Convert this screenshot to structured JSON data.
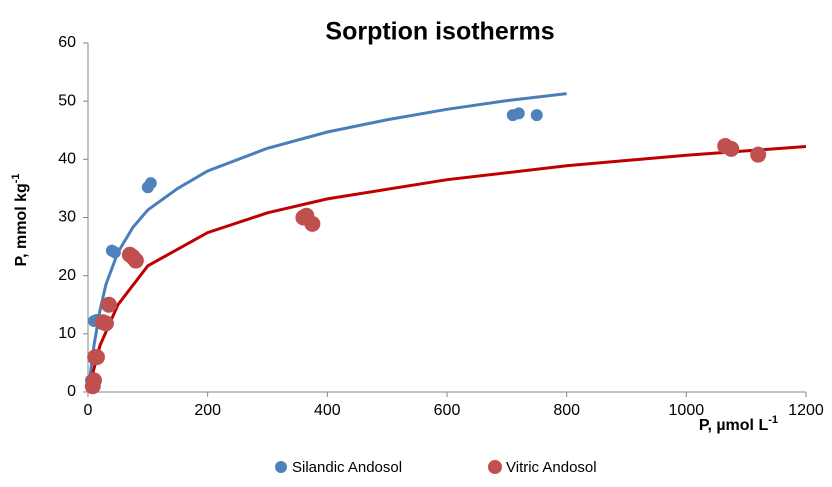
{
  "chart_data": {
    "type": "scatter",
    "title": "Sorption isotherms",
    "x_label": {
      "text": "P, µmol L",
      "sup": "-1"
    },
    "y_label": {
      "text": "P, mmol kg",
      "sup": "-1"
    },
    "xlim": [
      0,
      1200
    ],
    "xticks": [
      0,
      200,
      400,
      600,
      800,
      1000,
      1200
    ],
    "ylim": [
      0,
      60
    ],
    "yticks": [
      0,
      10,
      20,
      30,
      40,
      50,
      60
    ],
    "grid": false,
    "legend": "bottom",
    "series": [
      {
        "name": "Silandic Andosol",
        "type": "scatter",
        "color": "#4f81bd",
        "x": [
          5,
          10,
          15,
          40,
          45,
          100,
          105,
          710,
          720,
          750
        ],
        "values": [
          2,
          12.2,
          12.4,
          24.3,
          24,
          35.2,
          35.9,
          47.6,
          47.9,
          47.6
        ]
      },
      {
        "name": "Vitric Andosol",
        "type": "scatter",
        "color": "#c0504d",
        "x": [
          8,
          10,
          12,
          15,
          25,
          30,
          35,
          70,
          75,
          80,
          360,
          365,
          375,
          1065,
          1075,
          1120
        ],
        "values": [
          1,
          2,
          6,
          6,
          12,
          11.8,
          15,
          23.6,
          23.2,
          22.6,
          30,
          30.3,
          28.9,
          42.3,
          41.8,
          40.8
        ]
      },
      {
        "type": "line",
        "color": "#4a7ebb",
        "x": [
          0,
          10,
          20,
          30,
          50,
          75,
          100,
          150,
          200,
          300,
          400,
          500,
          600,
          700,
          800
        ],
        "values": [
          0,
          8,
          14,
          18.5,
          24,
          28.3,
          31.3,
          35,
          38,
          41.9,
          44.7,
          46.8,
          48.6,
          50.1,
          51.3
        ]
      },
      {
        "type": "line",
        "color": "#c00000",
        "x": [
          0,
          10,
          20,
          50,
          100,
          200,
          300,
          400,
          600,
          800,
          1000,
          1200
        ],
        "values": [
          0,
          4,
          8,
          15,
          21.7,
          27.4,
          30.8,
          33.2,
          36.5,
          38.9,
          40.7,
          42.2
        ]
      }
    ]
  }
}
